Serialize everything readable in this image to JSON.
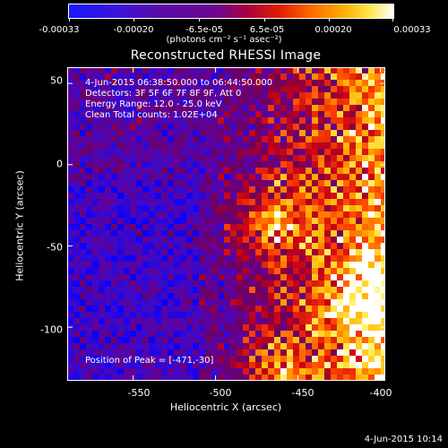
{
  "colorbar": {
    "tick_labels": [
      "-0.00033",
      "-0.00020",
      "-6.5e-05",
      "6.5e-05",
      "0.00020",
      "0.00033"
    ],
    "units": "(photons cm⁻² s⁻¹ asec⁻²)"
  },
  "chart_data": {
    "type": "heatmap",
    "title": "Reconstructed RHESSI Image",
    "xlabel": "Heliocentric X (arcsec)",
    "ylabel": "Heliocentric Y (arcsec)",
    "xlim": [
      -590,
      -397
    ],
    "ylim": [
      -133,
      60
    ],
    "x_ticks": [
      -550,
      -500,
      -450,
      -400
    ],
    "y_ticks": [
      50,
      0,
      -50,
      -100
    ],
    "x_tick_labels": [
      "-550",
      "-500",
      "-450",
      "-400"
    ],
    "y_tick_labels": [
      "50",
      "0",
      "-50",
      "-100"
    ],
    "colormap": "blue-purple-red-yellow-white",
    "colors": [
      "#0a00ff",
      "#4a00b0",
      "#6a00a0",
      "#c00020",
      "#ff5a00",
      "#ffc800",
      "#ffffff"
    ],
    "value_range": [
      -0.00033,
      0.00033
    ],
    "peak_position": [
      -471,
      -30
    ]
  },
  "annotations": {
    "time_range": "4-Jun-2015 06:38:50.000 to 06:44:50.000",
    "detectors": "Detectors: 3F 5F 6F 7F 8F 9F, Att 0",
    "energy": "Energy Range: 12.0 - 25.0 keV",
    "clean": "Clean    Total counts: 1.02E+04",
    "peak": "Position of Peak = [-471,-30]"
  },
  "footer": {
    "date": "4-Jun-2015 10:14"
  }
}
